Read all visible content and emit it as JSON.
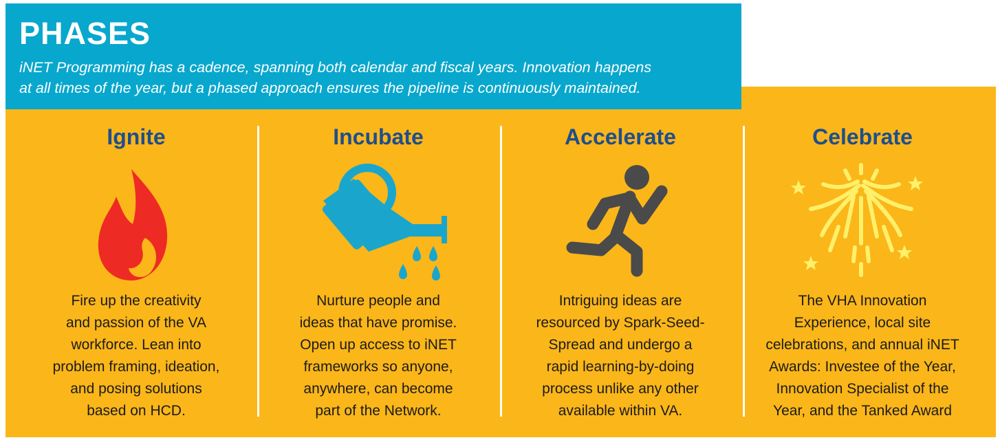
{
  "header": {
    "title": "PHASES",
    "subtitle_line1": "iNET Programming has a cadence, spanning both calendar and fiscal years. Innovation happens",
    "subtitle_line2": "at all times of the year, but a phased approach ensures the pipeline is continuously maintained."
  },
  "colors": {
    "header_bg": "#08a7cd",
    "panel_bg": "#fbb619",
    "title_blue": "#1f4e8c",
    "flame_red": "#ee2a24",
    "can_blue": "#1aa6cc",
    "runner_gray": "#4a4a4a",
    "firework_yellow": "#fff06a"
  },
  "phases": [
    {
      "title": "Ignite",
      "icon": "flame-icon",
      "lines": [
        "Fire up the creativity",
        "and passion of the VA",
        "workforce. Lean into",
        "problem framing, ideation,",
        "and posing solutions",
        "based on HCD."
      ]
    },
    {
      "title": "Incubate",
      "icon": "watering-can-icon",
      "lines": [
        "Nurture people and",
        "ideas that have promise.",
        "Open up access to iNET",
        "frameworks so anyone,",
        "anywhere, can become",
        "part of the Network."
      ]
    },
    {
      "title": "Accelerate",
      "icon": "running-person-icon",
      "lines": [
        "Intriguing ideas are",
        "resourced by Spark-Seed-",
        "Spread and undergo a",
        "rapid learning-by-doing",
        "process unlike any other",
        "available within VA."
      ]
    },
    {
      "title": "Celebrate",
      "icon": "fireworks-icon",
      "lines": [
        "The VHA Innovation",
        "Experience, local site",
        "celebrations, and annual iNET",
        "Awards: Investee of the Year,",
        "Innovation Specialist of the",
        "Year, and the Tanked Award"
      ]
    }
  ]
}
